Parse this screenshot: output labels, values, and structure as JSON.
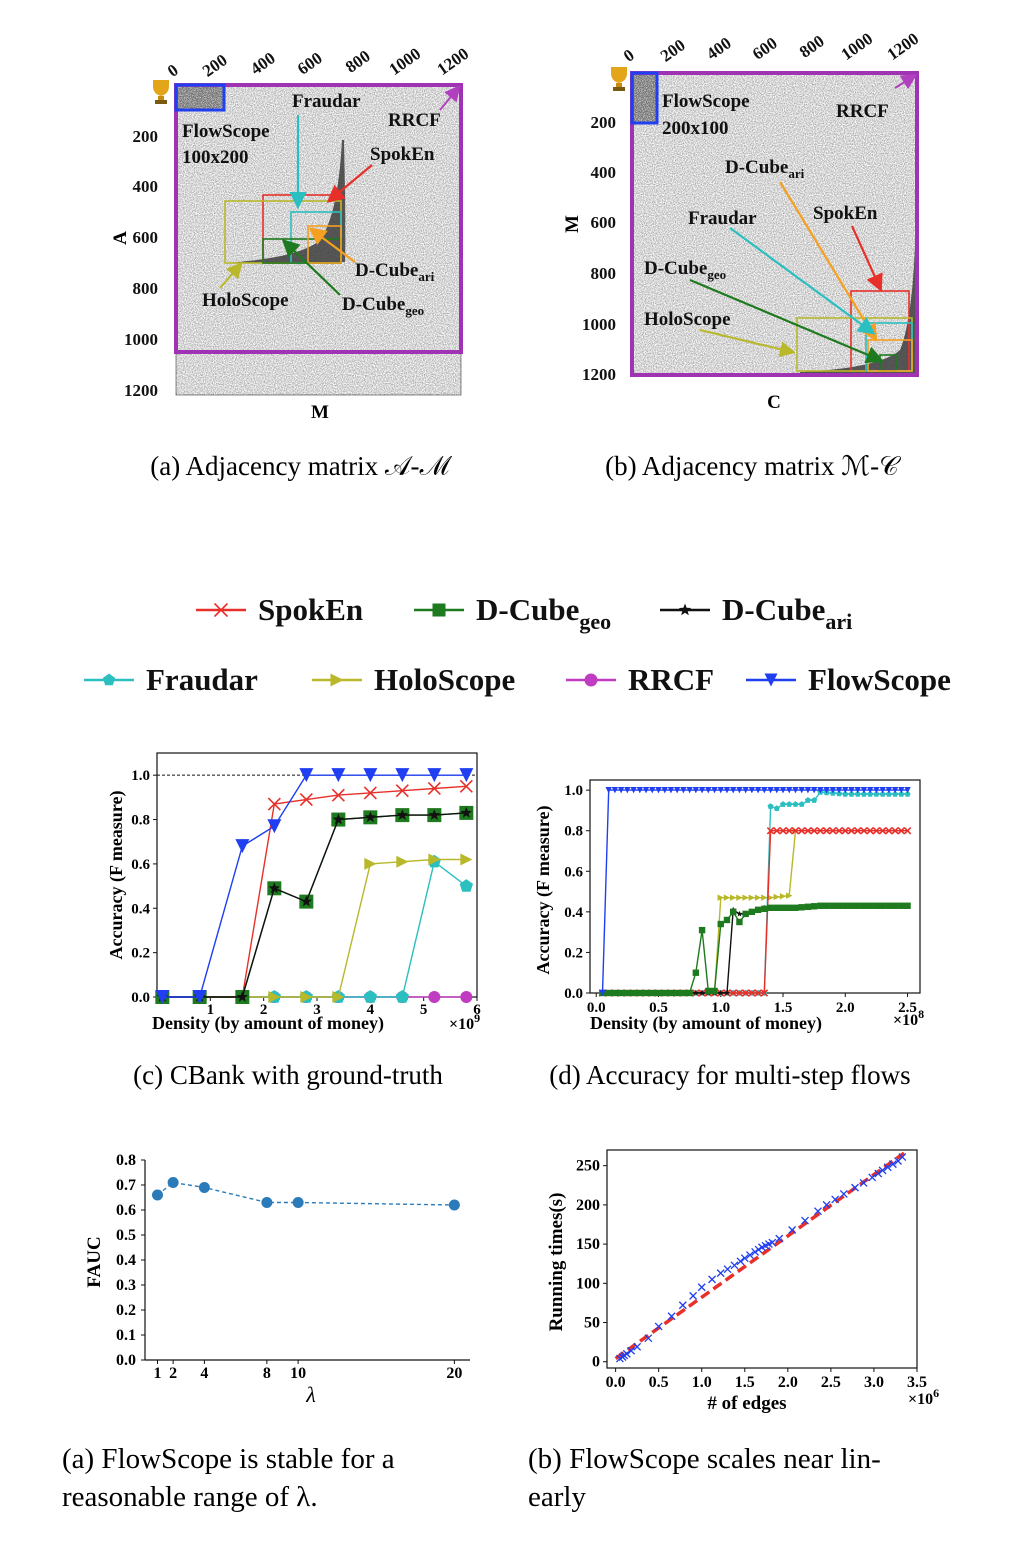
{
  "top_figure": {
    "a": {
      "x_ticks": [
        "0",
        "200",
        "400",
        "600",
        "800",
        "1000",
        "1200"
      ],
      "y_ticks": [
        "200",
        "400",
        "600",
        "800",
        "1000",
        "1200"
      ],
      "xlabel": "M",
      "ylabel": "A",
      "labels": {
        "flowscope_line1": "FlowScope",
        "flowscope_line2": "100x200",
        "fraudar": "Fraudar",
        "rrcf": "RRCF",
        "spoken": "SpokEn",
        "dcube_ari": "D-Cube",
        "dcube_ari_sub": "ari",
        "dcube_geo": "D-Cube",
        "dcube_geo_sub": "geo",
        "holoscope": "HoloScope"
      },
      "caption": "(a) Adjacency matrix 𝒜-ℳ"
    },
    "b": {
      "x_ticks": [
        "0",
        "200",
        "400",
        "600",
        "800",
        "1000",
        "1200"
      ],
      "y_ticks": [
        "200",
        "400",
        "600",
        "800",
        "1000",
        "1200"
      ],
      "xlabel": "C",
      "ylabel": "M",
      "labels": {
        "flowscope_line1": "FlowScope",
        "flowscope_line2": "200x100",
        "rrcf": "RRCF",
        "dcube_ari": "D-Cube",
        "dcube_ari_sub": "ari",
        "fraudar": "Fraudar",
        "spoken": "SpokEn",
        "dcube_geo": "D-Cube",
        "dcube_geo_sub": "geo",
        "holoscope": "HoloScope"
      },
      "caption": "(b) Adjacency matrix ℳ-𝒞"
    }
  },
  "legend": {
    "items": [
      {
        "name": "SpokEn",
        "color": "#e8302a",
        "marker": "x"
      },
      {
        "name": "D-Cube",
        "sub": "geo",
        "color": "#1e7a1e",
        "marker": "square"
      },
      {
        "name": "D-Cube",
        "sub": "ari",
        "color": "#111111",
        "marker": "star"
      },
      {
        "name": "Fraudar",
        "color": "#2bbfc0",
        "marker": "pentagon"
      },
      {
        "name": "HoloScope",
        "color": "#b8b82a",
        "marker": "tri-right"
      },
      {
        "name": "RRCF",
        "color": "#c03cc0",
        "marker": "circle"
      },
      {
        "name": "FlowScope",
        "color": "#1f3ff0",
        "marker": "tri-down"
      }
    ]
  },
  "chart_data": [
    {
      "id": "c",
      "type": "line",
      "xlabel": "Density (by amount of money)",
      "x_multiplier": "×10",
      "x_multiplier_exp": "9",
      "ylabel": "Accuracy (F measure)",
      "xlim": [
        0,
        6
      ],
      "ylim": [
        0,
        1.1
      ],
      "x_ticks": [
        "1",
        "2",
        "3",
        "4",
        "5",
        "6"
      ],
      "y_ticks": [
        "0.0",
        "0.2",
        "0.4",
        "0.6",
        "0.8",
        "1.0"
      ],
      "reference_line": 1.0,
      "series": [
        {
          "name": "SpokEn",
          "x": [
            0.1,
            0.8,
            1.6,
            2.2,
            2.8,
            3.4,
            4.0,
            4.6,
            5.2,
            5.8
          ],
          "values": [
            0,
            0,
            0,
            0.87,
            0.89,
            0.91,
            0.92,
            0.93,
            0.94,
            0.95
          ]
        },
        {
          "name": "D-Cube geo",
          "x": [
            0.1,
            0.8,
            1.6,
            2.2,
            2.8,
            3.4,
            4.0,
            4.6,
            5.2,
            5.8
          ],
          "values": [
            0,
            0,
            0,
            0.49,
            0.43,
            0.8,
            0.81,
            0.82,
            0.82,
            0.83
          ]
        },
        {
          "name": "D-Cube ari",
          "x": [
            0.1,
            0.8,
            1.6,
            2.2,
            2.8,
            3.4,
            4.0,
            4.6,
            5.2,
            5.8
          ],
          "values": [
            0,
            0,
            0,
            0.49,
            0.43,
            0.8,
            0.81,
            0.82,
            0.82,
            0.83
          ]
        },
        {
          "name": "Fraudar",
          "x": [
            0.1,
            0.8,
            1.6,
            2.2,
            2.8,
            3.4,
            4.0,
            4.6,
            5.2,
            5.8
          ],
          "values": [
            0,
            0,
            0,
            0,
            0,
            0,
            0,
            0,
            0.61,
            0.5
          ]
        },
        {
          "name": "HoloScope",
          "x": [
            0.1,
            0.8,
            1.6,
            2.2,
            2.8,
            3.4,
            4.0,
            4.6,
            5.2,
            5.8
          ],
          "values": [
            0,
            0,
            0,
            0,
            0,
            0,
            0.6,
            0.61,
            0.62,
            0.62
          ]
        },
        {
          "name": "RRCF",
          "x": [
            0.1,
            0.8,
            1.6,
            2.2,
            2.8,
            3.4,
            4.0,
            4.6,
            5.2,
            5.8
          ],
          "values": [
            0,
            0,
            0,
            0,
            0,
            0,
            0,
            0,
            0,
            0
          ]
        },
        {
          "name": "FlowScope",
          "x": [
            0.1,
            0.8,
            1.6,
            2.2,
            2.8,
            3.4,
            4.0,
            4.6,
            5.2,
            5.8
          ],
          "values": [
            0,
            0,
            0.68,
            0.77,
            1.0,
            1.0,
            1.0,
            1.0,
            1.0,
            1.0
          ]
        }
      ],
      "caption": "(c) CBank with ground-truth"
    },
    {
      "id": "d",
      "type": "line",
      "xlabel": "Density (by amount of money)",
      "x_multiplier": "×10",
      "x_multiplier_exp": "8",
      "ylabel": "Accuracy (F measure)",
      "xlim": [
        -0.05,
        2.6
      ],
      "ylim": [
        0,
        1.05
      ],
      "x_ticks": [
        "0.0",
        "0.5",
        "1.0",
        "1.5",
        "2.0",
        "2.5"
      ],
      "x_tick_values": [
        0,
        0.5,
        1.0,
        1.5,
        2.0,
        2.5
      ],
      "y_ticks": [
        "0.0",
        "0.2",
        "0.4",
        "0.6",
        "0.8",
        "1.0"
      ],
      "series": [
        {
          "name": "SpokEn",
          "x": [
            0.05,
            0.5,
            1.0,
            1.35,
            1.4,
            1.55,
            1.6,
            1.8,
            2.0,
            2.2,
            2.5
          ],
          "values": [
            0,
            0,
            0,
            0,
            0.8,
            0.8,
            0.8,
            0.8,
            0.8,
            0.8,
            0.8
          ]
        },
        {
          "name": "D-Cube geo",
          "x": [
            0.05,
            0.5,
            0.7,
            0.75,
            0.8,
            0.85,
            0.9,
            0.95,
            1.0,
            1.05,
            1.1,
            1.15,
            1.2,
            1.25,
            1.3,
            1.4,
            1.5,
            1.6,
            1.8,
            2.0,
            2.2,
            2.5
          ],
          "values": [
            0,
            0,
            0,
            0,
            0.1,
            0.31,
            0.01,
            0.01,
            0.34,
            0.36,
            0.4,
            0.35,
            0.39,
            0.4,
            0.41,
            0.42,
            0.42,
            0.42,
            0.43,
            0.43,
            0.43,
            0.43
          ]
        },
        {
          "name": "D-Cube ari",
          "x": [
            0.05,
            0.5,
            1.0,
            1.05,
            1.1,
            1.15,
            1.2,
            1.25,
            1.3,
            1.35
          ],
          "values": [
            0,
            0,
            0,
            0,
            0.41,
            0.39,
            0.39,
            0.4,
            0.41,
            0.42
          ]
        },
        {
          "name": "Fraudar",
          "x": [
            0.05,
            0.5,
            1.0,
            1.35,
            1.4,
            1.45,
            1.5,
            1.55,
            1.6,
            1.65,
            1.7,
            1.75,
            1.8,
            2.0,
            2.2,
            2.5
          ],
          "values": [
            0,
            0,
            0,
            0,
            0.92,
            0.91,
            0.93,
            0.93,
            0.93,
            0.93,
            0.95,
            0.95,
            0.99,
            0.98,
            0.98,
            0.98
          ]
        },
        {
          "name": "HoloScope",
          "x": [
            0.05,
            0.5,
            0.95,
            1.0,
            1.2,
            1.4,
            1.55,
            1.6
          ],
          "values": [
            0,
            0,
            0,
            0.47,
            0.47,
            0.47,
            0.48,
            0.8
          ]
        },
        {
          "name": "FlowScope",
          "x": [
            0.05,
            0.1,
            0.5,
            1.0,
            1.5,
            2.0,
            2.5
          ],
          "values": [
            0,
            1.0,
            1.0,
            1.0,
            1.0,
            1.0,
            1.0
          ]
        }
      ],
      "caption": "(d) Accuracy for multi-step flows"
    },
    {
      "id": "e",
      "type": "line",
      "xlabel": "λ",
      "ylabel": "FAUC",
      "xlim": [
        0.2,
        21
      ],
      "ylim": [
        0,
        0.8
      ],
      "x_ticks": [
        "1",
        "2",
        "4",
        "8",
        "10",
        "20"
      ],
      "x_tick_values": [
        1,
        2,
        4,
        8,
        10,
        20
      ],
      "y_ticks": [
        "0.0",
        "0.1",
        "0.2",
        "0.3",
        "0.4",
        "0.5",
        "0.6",
        "0.7",
        "0.8"
      ],
      "series": [
        {
          "name": "FAUC",
          "x": [
            1,
            2,
            4,
            8,
            10,
            20
          ],
          "values": [
            0.66,
            0.71,
            0.69,
            0.63,
            0.63,
            0.62
          ]
        }
      ],
      "caption": "(a) FlowScope is stable for a reasonable range of λ."
    },
    {
      "id": "f",
      "type": "scatter",
      "xlabel": "# of edges",
      "x_multiplier": "×10",
      "x_multiplier_exp": "6",
      "ylabel": "Running times(s)",
      "xlim": [
        -0.1,
        3.5
      ],
      "ylim": [
        -8,
        270
      ],
      "x_ticks": [
        "0.0",
        "0.5",
        "1.0",
        "1.5",
        "2.0",
        "2.5",
        "3.0",
        "3.5"
      ],
      "y_ticks": [
        "0",
        "50",
        "100",
        "150",
        "200",
        "250"
      ],
      "fit_line": {
        "x": [
          0.0,
          3.35
        ],
        "values": [
          4,
          266
        ]
      },
      "series": [
        {
          "name": "runs",
          "x": [
            0.05,
            0.08,
            0.1,
            0.13,
            0.18,
            0.25,
            0.38,
            0.5,
            0.65,
            0.78,
            0.9,
            1.0,
            1.12,
            1.22,
            1.3,
            1.38,
            1.45,
            1.5,
            1.56,
            1.62,
            1.66,
            1.7,
            1.74,
            1.78,
            1.82,
            1.9,
            2.05,
            2.2,
            2.35,
            2.45,
            2.55,
            2.65,
            2.78,
            2.88,
            2.98,
            3.05,
            3.1,
            3.16,
            3.22,
            3.28,
            3.33
          ],
          "values": [
            4,
            6,
            8,
            10,
            14,
            19,
            30,
            45,
            58,
            72,
            84,
            95,
            105,
            113,
            118,
            123,
            128,
            132,
            136,
            140,
            143,
            146,
            148,
            150,
            152,
            157,
            168,
            180,
            192,
            200,
            207,
            214,
            222,
            228,
            235,
            240,
            244,
            248,
            252,
            256,
            261
          ]
        }
      ],
      "caption": "(b) FlowScope scales near lin- early"
    }
  ]
}
